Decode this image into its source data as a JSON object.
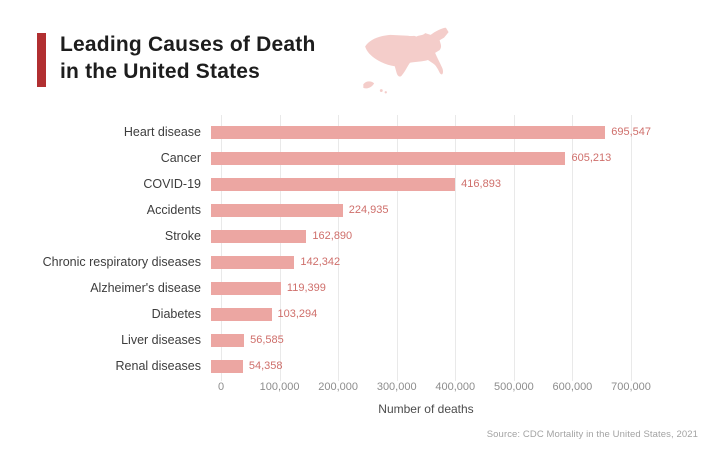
{
  "header": {
    "title_line1": "Leading Causes of Death",
    "title_line2": "in the United States"
  },
  "chart_data": {
    "type": "bar",
    "orientation": "horizontal",
    "title": "Leading Causes of Death in the United States",
    "categories": [
      "Heart disease",
      "Cancer",
      "COVID-19",
      "Accidents",
      "Stroke",
      "Chronic respiratory diseases",
      "Alzheimer's disease",
      "Diabetes",
      "Liver diseases",
      "Renal diseases"
    ],
    "values": [
      695547,
      605213,
      416893,
      224935,
      162890,
      142342,
      119399,
      103294,
      56585,
      54358
    ],
    "value_labels": [
      "695,547",
      "605,213",
      "416,893",
      "224,935",
      "162,890",
      "142,342",
      "119,399",
      "103,294",
      "56,585",
      "54,358"
    ],
    "xlabel": "Number of deaths",
    "xlim": [
      0,
      700000
    ],
    "xticks": [
      "0",
      "100,000",
      "200,000",
      "300,000",
      "400,000",
      "500,000",
      "600,000",
      "700,000"
    ],
    "grid": "vertical",
    "legend": "none",
    "bar_color": "#eca6a2",
    "value_label_color": "#cf6f6b",
    "accent_color": "#b12f31",
    "map_color": "#f4cdca"
  },
  "footer": {
    "source": "Source: CDC Mortality in the United States, 2021"
  },
  "icons": {
    "map": "us-map-icon"
  }
}
